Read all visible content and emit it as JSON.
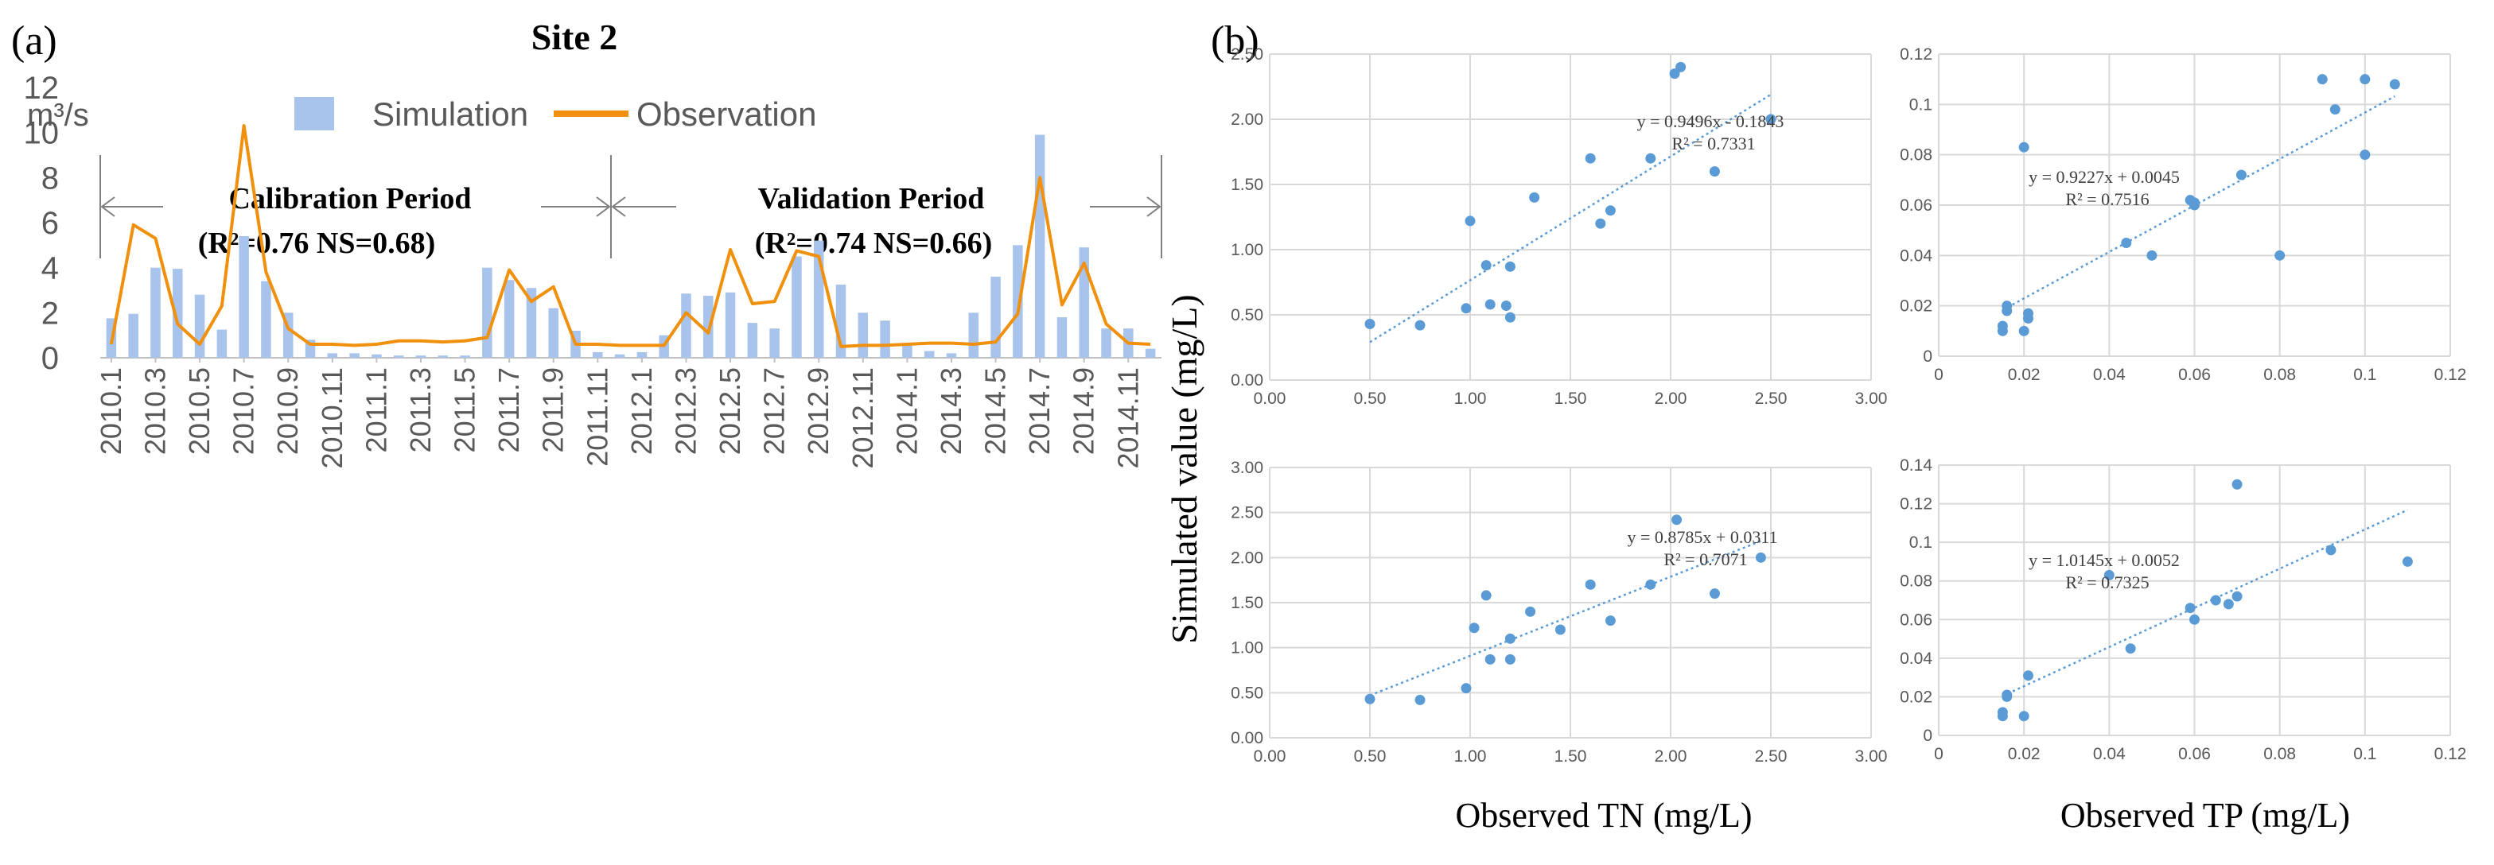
{
  "panel_a": {
    "label": "(a)",
    "title": "Site 2",
    "unit": "m³/s",
    "legend": {
      "simulation": "Simulation",
      "observation": "Observation"
    },
    "calibration": {
      "title": "Calibration  Period",
      "stats": "(R²=0.76 NS=0.68)"
    },
    "validation": {
      "title": "Validation Period",
      "stats": "(R²=0.74 NS=0.66)"
    }
  },
  "panel_b": {
    "label": "(b)",
    "ylabel": "Simulated value (mg/L)",
    "xlabel_tn": "Observed TN (mg/L)",
    "xlabel_tp": "Observed TP (mg/L)"
  },
  "colors": {
    "bar": "#a9c4ec",
    "line": "#f0900c",
    "point": "#5b9bd5",
    "trend": "#5b9bd5",
    "grid": "#d9d9d9",
    "axis": "#595959"
  },
  "chart_data": [
    {
      "type": "bar",
      "name": "monthly-flow",
      "title": "Site 2",
      "ylabel": "m³/s",
      "ylim": [
        0,
        12
      ],
      "yticks": [
        0,
        2,
        4,
        6,
        8,
        10,
        12
      ],
      "tick_labels": [
        "2010.1",
        "2010.3",
        "2010.5",
        "2010.7",
        "2010.9",
        "2010.11",
        "2011.1",
        "2011.3",
        "2011.5",
        "2011.7",
        "2011.9",
        "2011.11",
        "2012.1",
        "2012.3",
        "2012.5",
        "2012.7",
        "2012.9",
        "2012.11",
        "2014.1",
        "2014.3",
        "2014.5",
        "2014.7",
        "2014.9",
        "2014.11"
      ],
      "categories": [
        "2010.1",
        "2010.2",
        "2010.3",
        "2010.4",
        "2010.5",
        "2010.6",
        "2010.7",
        "2010.8",
        "2010.9",
        "2010.10",
        "2010.11",
        "2010.12",
        "2011.1",
        "2011.2",
        "2011.3",
        "2011.4",
        "2011.5",
        "2011.6",
        "2011.7",
        "2011.8",
        "2011.9",
        "2011.10",
        "2011.11",
        "2011.12",
        "2012.1",
        "2012.2",
        "2012.3",
        "2012.4",
        "2012.5",
        "2012.6",
        "2012.7",
        "2012.8",
        "2012.9",
        "2012.10",
        "2012.11",
        "2012.12",
        "2014.1",
        "2014.2",
        "2014.3",
        "2014.4",
        "2014.5",
        "2014.6",
        "2014.7",
        "2014.8",
        "2014.9",
        "2014.10",
        "2014.11",
        "2014.12"
      ],
      "series": [
        {
          "name": "Simulation",
          "kind": "bar",
          "values": [
            1.75,
            1.95,
            4.0,
            3.95,
            2.8,
            1.25,
            5.4,
            3.4,
            2.0,
            0.8,
            0.2,
            0.2,
            0.15,
            0.1,
            0.1,
            0.1,
            0.1,
            4.0,
            3.45,
            3.1,
            2.2,
            1.2,
            0.25,
            0.15,
            0.25,
            1.0,
            2.85,
            2.75,
            2.9,
            1.55,
            1.3,
            4.5,
            5.2,
            3.25,
            2.0,
            1.65,
            0.6,
            0.3,
            0.2,
            2.0,
            3.6,
            5.0,
            9.9,
            1.8,
            4.9,
            1.3,
            1.3,
            0.4
          ]
        },
        {
          "name": "Observation",
          "kind": "line",
          "values": [
            0.6,
            5.9,
            5.3,
            1.5,
            0.6,
            2.3,
            10.3,
            3.8,
            1.3,
            0.6,
            0.6,
            0.55,
            0.6,
            0.75,
            0.75,
            0.7,
            0.75,
            0.9,
            3.9,
            2.5,
            3.15,
            0.6,
            0.6,
            0.55,
            0.55,
            0.55,
            2.0,
            1.1,
            4.8,
            2.4,
            2.5,
            4.75,
            4.5,
            0.5,
            0.55,
            0.55,
            0.6,
            0.65,
            0.65,
            0.6,
            0.7,
            1.95,
            8.0,
            2.35,
            4.2,
            1.5,
            0.65,
            0.6
          ]
        }
      ],
      "annotations": [
        "Calibration  Period (R²=0.76 NS=0.68)",
        "Validation Period (R²=0.74 NS=0.66)"
      ]
    },
    {
      "type": "scatter",
      "name": "tn-top",
      "xlim": [
        0,
        3
      ],
      "ylim": [
        0,
        2.5
      ],
      "xticks": [
        "0.00",
        "0.50",
        "1.00",
        "1.50",
        "2.00",
        "2.50",
        "3.00"
      ],
      "yticks": [
        "0.00",
        "0.50",
        "1.00",
        "1.50",
        "2.00",
        "2.50"
      ],
      "x": [
        0.5,
        0.75,
        0.98,
        1.0,
        1.08,
        1.1,
        1.18,
        1.2,
        1.2,
        1.32,
        1.6,
        1.65,
        1.7,
        1.9,
        2.02,
        2.05,
        2.22,
        2.5
      ],
      "y": [
        0.43,
        0.42,
        0.55,
        1.22,
        0.88,
        0.58,
        0.57,
        0.48,
        0.87,
        1.4,
        1.7,
        1.2,
        1.3,
        1.7,
        2.35,
        2.4,
        1.6,
        2.0
      ],
      "trendline": {
        "slope": 0.9496,
        "intercept": -0.1843,
        "x_range": [
          0.5,
          2.5
        ]
      },
      "equation": "y = 0.9496x - 0.1843",
      "r2": "R² = 0.7331"
    },
    {
      "type": "scatter",
      "name": "tp-top",
      "xlim": [
        0,
        0.12
      ],
      "ylim": [
        0,
        0.12
      ],
      "xticks": [
        "0",
        "0.02",
        "0.04",
        "0.06",
        "0.08",
        "0.1",
        "0.12"
      ],
      "yticks": [
        "0",
        "0.02",
        "0.04",
        "0.06",
        "0.08",
        "0.1",
        "0.12"
      ],
      "x": [
        0.015,
        0.015,
        0.016,
        0.016,
        0.02,
        0.02,
        0.021,
        0.021,
        0.044,
        0.05,
        0.059,
        0.06,
        0.06,
        0.071,
        0.08,
        0.09,
        0.093,
        0.1,
        0.1,
        0.107
      ],
      "y": [
        0.012,
        0.01,
        0.02,
        0.018,
        0.01,
        0.083,
        0.017,
        0.015,
        0.045,
        0.04,
        0.062,
        0.06,
        0.061,
        0.072,
        0.04,
        0.11,
        0.098,
        0.11,
        0.08,
        0.108
      ],
      "trendline": {
        "slope": 0.9227,
        "intercept": 0.0045,
        "x_range": [
          0.015,
          0.107
        ]
      },
      "equation": "y = 0.9227x + 0.0045",
      "r2": "R² = 0.7516"
    },
    {
      "type": "scatter",
      "name": "tn-bottom",
      "xlim": [
        0,
        3
      ],
      "ylim": [
        0,
        3
      ],
      "xticks": [
        "0.00",
        "0.50",
        "1.00",
        "1.50",
        "2.00",
        "2.50",
        "3.00"
      ],
      "yticks": [
        "0.00",
        "0.50",
        "1.00",
        "1.50",
        "2.00",
        "2.50",
        "3.00"
      ],
      "x": [
        0.5,
        0.75,
        0.98,
        1.02,
        1.08,
        1.1,
        1.2,
        1.2,
        1.3,
        1.45,
        1.6,
        1.7,
        1.9,
        2.03,
        2.22,
        2.45
      ],
      "y": [
        0.43,
        0.42,
        0.55,
        1.22,
        1.58,
        0.87,
        1.1,
        0.87,
        1.4,
        1.2,
        1.7,
        1.3,
        1.7,
        2.42,
        1.6,
        2.0
      ],
      "trendline": {
        "slope": 0.8785,
        "intercept": 0.0311,
        "x_range": [
          0.5,
          2.45
        ]
      },
      "equation": "y = 0.8785x + 0.0311",
      "r2": "R² = 0.7071"
    },
    {
      "type": "scatter",
      "name": "tp-bottom",
      "xlim": [
        0,
        0.12
      ],
      "ylim": [
        0,
        0.14
      ],
      "xticks": [
        "0",
        "0.02",
        "0.04",
        "0.06",
        "0.08",
        "0.1",
        "0.12"
      ],
      "yticks": [
        "0",
        "0.02",
        "0.04",
        "0.06",
        "0.08",
        "0.1",
        "0.12",
        "0.14"
      ],
      "x": [
        0.015,
        0.015,
        0.016,
        0.016,
        0.02,
        0.021,
        0.04,
        0.045,
        0.059,
        0.06,
        0.065,
        0.068,
        0.07,
        0.07,
        0.092,
        0.11
      ],
      "y": [
        0.012,
        0.01,
        0.021,
        0.02,
        0.01,
        0.031,
        0.083,
        0.045,
        0.066,
        0.06,
        0.07,
        0.068,
        0.072,
        0.13,
        0.096,
        0.09
      ],
      "trendline": {
        "slope": 1.0145,
        "intercept": 0.0052,
        "x_range": [
          0.015,
          0.11
        ]
      },
      "equation": "y = 1.0145x + 0.0052",
      "r2": "R² = 0.7325"
    }
  ]
}
